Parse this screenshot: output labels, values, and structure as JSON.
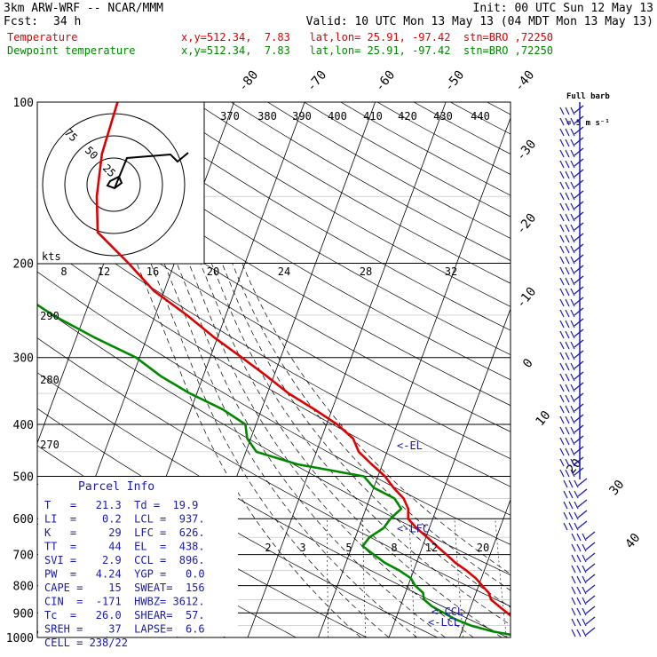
{
  "header": {
    "model": "3km ARW-WRF -- NCAR/MMM",
    "init": "Init: 00 UTC Sun 12 May 13",
    "fcst_label": "Fcst:",
    "fcst_value": "34 h",
    "valid": "Valid: 10 UTC Mon 13 May 13 (04 MDT Mon 13 May 13)",
    "temp_label": "Temperature",
    "temp_info": "x,y=512.34,  7.83   lat,lon= 25.91, -97.42  stn=BRO ,72250",
    "dew_label": "Dewpoint temperature",
    "dew_info": "x,y=512.34,  7.83   lat,lon= 25.91, -97.42  stn=BRO ,72250",
    "full_barb_line1": "Full barb",
    "full_barb_line2": "= 5 m s⁻¹",
    "colors": {
      "temperature": "#e00000",
      "dewpoint": "#008800",
      "info": "#1a1ab0",
      "wind": "#1a1ab0"
    }
  },
  "parcel": {
    "title": "Parcel Info",
    "rows": [
      "T   =   21.3  Td =  19.9",
      "LI  =    0.2  LCL =  937.",
      "K   =     29  LFC =  626.",
      "TT  =     44  EL  =  438.",
      "SVI =    2.9  CCL =  896.",
      "PW  =   4.24  YGP =   0.0",
      "CAPE =    15  SWEAT=  156",
      "CIN  =  -171  HWBZ= 3612.",
      "Tc  =   26.0  SHEAR=  57.",
      "SREH =    37  LAPSE=  6.6",
      "CELL = 238/22"
    ]
  },
  "chart_data": {
    "type": "skew-t",
    "pressure_axis_ticks": [
      "100",
      "200",
      "300",
      "400",
      "500",
      "600",
      "700",
      "800",
      "900",
      "1000"
    ],
    "isotherm_labels": [
      "-80",
      "-70",
      "-60",
      "-50",
      "-40",
      "-30",
      "-20",
      "-10",
      "0",
      "10",
      "20",
      "30",
      "40"
    ],
    "theta_labels": [
      "370",
      "380",
      "390",
      "400",
      "410",
      "420",
      "430",
      "440",
      "290",
      "280",
      "270"
    ],
    "mixing_ratio_labels": [
      "2",
      "3",
      "5",
      "8",
      "12",
      "20"
    ],
    "hodograph": {
      "ring_labels": [
        "75",
        "50",
        "25"
      ],
      "unit_label": "kts",
      "speed_ticks": [
        "8",
        "12",
        "16",
        "20",
        "24",
        "28",
        "32"
      ]
    },
    "levels": [
      {
        "label": "<-EL",
        "p": 438
      },
      {
        "label": "<-LFC",
        "p": 626
      },
      {
        "label": "<-CCL",
        "p": 896
      },
      {
        "label": "<-LCL",
        "p": 937
      }
    ],
    "temperature": {
      "name": "Temperature",
      "p": [
        1000,
        975,
        950,
        925,
        900,
        875,
        850,
        825,
        800,
        775,
        750,
        725,
        700,
        675,
        650,
        625,
        600,
        575,
        550,
        525,
        500,
        475,
        450,
        425,
        400,
        375,
        350,
        325,
        300,
        275,
        250,
        225,
        200,
        175,
        150,
        125,
        100
      ],
      "t_c": [
        21.5,
        19.5,
        18.5,
        17.0,
        15.5,
        14.0,
        12.5,
        11.8,
        10.5,
        9.2,
        7.5,
        5.5,
        3.8,
        2.0,
        0.2,
        -1.8,
        -3.5,
        -4.0,
        -5.2,
        -7.2,
        -9.0,
        -11.5,
        -14.0,
        -15.5,
        -18.5,
        -22.5,
        -27.0,
        -31.0,
        -35.5,
        -40.5,
        -45.5,
        -51.5,
        -56.5,
        -62.5,
        -64.5,
        -66.0,
        -66.5
      ]
    },
    "dewpoint": {
      "name": "Dewpoint temperature",
      "p": [
        1000,
        975,
        950,
        925,
        900,
        875,
        850,
        825,
        800,
        775,
        750,
        725,
        700,
        675,
        650,
        625,
        600,
        575,
        550,
        525,
        500,
        475,
        450,
        425,
        400,
        375,
        350,
        325,
        300,
        275,
        250,
        225,
        200,
        175,
        150,
        125,
        100
      ],
      "td_c": [
        19.5,
        14.5,
        11.0,
        8.5,
        6.5,
        4.5,
        3.0,
        2.5,
        1.0,
        0.0,
        -2.0,
        -4.5,
        -6.5,
        -8.5,
        -8.0,
        -6.5,
        -6.0,
        -5.0,
        -6.5,
        -10.0,
        -12.0,
        -22.0,
        -28.5,
        -30.5,
        -31.5,
        -35.5,
        -41.0,
        -46.0,
        -50.5,
        -57.5,
        -64.5,
        -71.0,
        -76.0,
        -80.5,
        -82.0,
        -82.5,
        -82.5
      ]
    }
  }
}
